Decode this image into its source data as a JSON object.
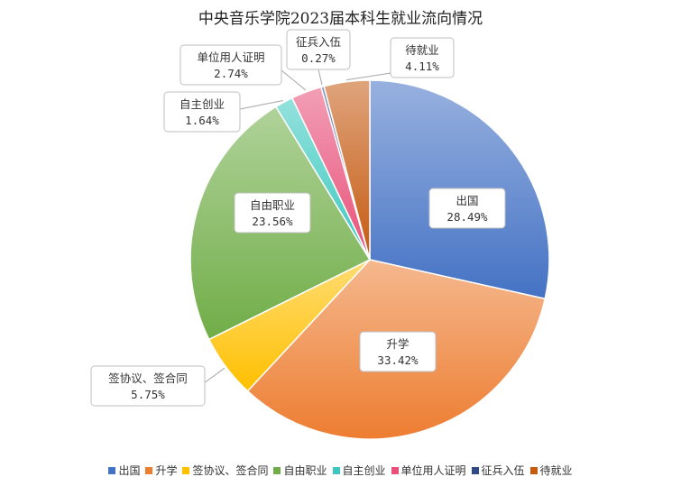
{
  "chart_data": {
    "type": "pie",
    "title": "中央音乐学院2023届本科生就业流向情况",
    "legend_position": "bottom",
    "slices": [
      {
        "name": "出国",
        "value": 28.49,
        "label": "28.49%",
        "color": "#4472c4"
      },
      {
        "name": "升学",
        "value": 33.42,
        "label": "33.42%",
        "color": "#ed7d31"
      },
      {
        "name": "签协议、签合同",
        "value": 5.75,
        "label": "5.75%",
        "color": "#ffc000"
      },
      {
        "name": "自由职业",
        "value": 23.56,
        "label": "23.56%",
        "color": "#70ad47"
      },
      {
        "name": "自主创业",
        "value": 1.64,
        "label": "1.64%",
        "color": "#3cc8c0"
      },
      {
        "name": "单位用人证明",
        "value": 2.74,
        "label": "2.74%",
        "color": "#e8507a"
      },
      {
        "name": "征兵入伍",
        "value": 0.27,
        "label": "0.27%",
        "color": "#2f4a8a"
      },
      {
        "name": "待就业",
        "value": 4.11,
        "label": "4.11%",
        "color": "#c55a11"
      }
    ]
  }
}
